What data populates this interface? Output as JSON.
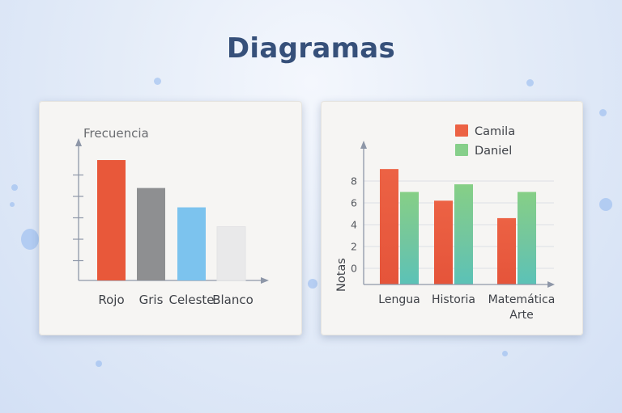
{
  "page": {
    "title": "Diagramas"
  },
  "chart_data": [
    {
      "type": "bar",
      "title": "",
      "ylabel": "Frecuencia",
      "xlabel": "",
      "categories": [
        "Rojo",
        "Gris",
        "Celeste",
        "Blanco"
      ],
      "values": [
        5.6,
        4.3,
        3.4,
        2.5
      ],
      "colors": [
        "#e8583a",
        "#8e8f91",
        "#7cc3ee",
        "#e9e9ea"
      ],
      "y_ticks_unlabeled": 5,
      "grid": false,
      "legend": null
    },
    {
      "type": "bar",
      "title": "",
      "ylabel": "Notas",
      "xlabel": "",
      "categories": [
        "Lengua",
        "Historia",
        "Matemática\nArte"
      ],
      "category_labels": {
        "line1": [
          "Lengua",
          "Historia",
          "Matemática"
        ],
        "line2": [
          "",
          "",
          "Arte"
        ]
      },
      "y_tick_labels": [
        "0",
        "2",
        "4",
        "6",
        "8"
      ],
      "series": [
        {
          "name": "Camila",
          "color": "#e8583a",
          "values": [
            9.1,
            6.2,
            4.6
          ]
        },
        {
          "name": "Daniel",
          "color": "#7cc98a",
          "values": [
            7.0,
            7.7,
            7.0
          ]
        }
      ],
      "grid": true,
      "legend": {
        "position": "top-right",
        "entries": [
          "Camila",
          "Daniel"
        ]
      }
    }
  ]
}
